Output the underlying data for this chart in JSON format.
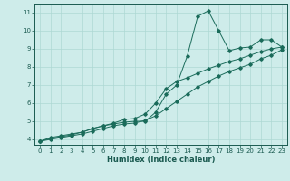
{
  "xlabel": "Humidex (Indice chaleur)",
  "bg_color": "#ceecea",
  "grid_color": "#aed8d4",
  "line_color": "#1a6b5a",
  "xlim": [
    -0.5,
    23.5
  ],
  "ylim": [
    3.7,
    11.5
  ],
  "xticks": [
    0,
    1,
    2,
    3,
    4,
    5,
    6,
    7,
    8,
    9,
    10,
    11,
    12,
    13,
    14,
    15,
    16,
    17,
    18,
    19,
    20,
    21,
    22,
    23
  ],
  "yticks": [
    4,
    5,
    6,
    7,
    8,
    9,
    10,
    11
  ],
  "line1_x": [
    0,
    1,
    2,
    3,
    4,
    5,
    6,
    7,
    8,
    9,
    10,
    11,
    12,
    13,
    14,
    15,
    16,
    17,
    18,
    19,
    20,
    21,
    22,
    23
  ],
  "line1_y": [
    3.9,
    4.1,
    4.2,
    4.3,
    4.4,
    4.6,
    4.75,
    4.85,
    4.95,
    5.0,
    5.0,
    5.5,
    6.5,
    7.0,
    8.6,
    10.8,
    11.1,
    10.0,
    8.9,
    9.05,
    9.1,
    9.5,
    9.5,
    9.1
  ],
  "line2_x": [
    0,
    1,
    2,
    3,
    4,
    5,
    6,
    7,
    8,
    9,
    10,
    11,
    12,
    13,
    14,
    15,
    16,
    17,
    18,
    19,
    20,
    21,
    22,
    23
  ],
  "line2_y": [
    3.9,
    4.05,
    4.15,
    4.25,
    4.4,
    4.6,
    4.75,
    4.9,
    5.1,
    5.15,
    5.4,
    6.0,
    6.8,
    7.2,
    7.4,
    7.65,
    7.9,
    8.1,
    8.3,
    8.45,
    8.65,
    8.85,
    9.0,
    9.1
  ],
  "line3_x": [
    0,
    1,
    2,
    3,
    4,
    5,
    6,
    7,
    8,
    9,
    10,
    11,
    12,
    13,
    14,
    15,
    16,
    17,
    18,
    19,
    20,
    21,
    22,
    23
  ],
  "line3_y": [
    3.9,
    4.0,
    4.1,
    4.2,
    4.3,
    4.45,
    4.6,
    4.75,
    4.85,
    4.9,
    5.05,
    5.3,
    5.7,
    6.1,
    6.5,
    6.9,
    7.2,
    7.5,
    7.75,
    7.95,
    8.15,
    8.45,
    8.65,
    8.95
  ]
}
